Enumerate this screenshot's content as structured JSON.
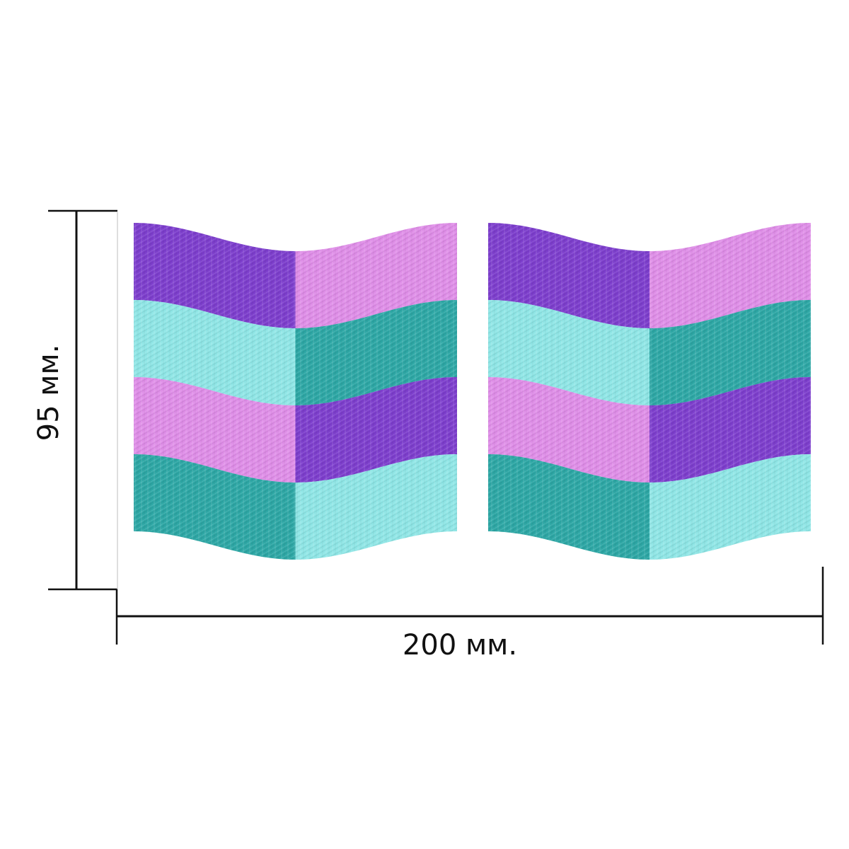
{
  "dimensions": {
    "height_label": "95 мм.",
    "width_label": "200 мм."
  },
  "colors": {
    "purple": "#7e3fce",
    "pink": "#df8ee8",
    "light_teal": "#8fe6e6",
    "dark_teal": "#2ea8a6",
    "line": "#111111"
  },
  "stickers": [
    {
      "name": "left",
      "columns": [
        [
          "purple",
          "light_teal",
          "pink",
          "dark_teal"
        ],
        [
          "pink",
          "dark_teal",
          "purple",
          "light_teal"
        ]
      ]
    },
    {
      "name": "right",
      "columns": [
        [
          "purple",
          "light_teal",
          "pink",
          "dark_teal"
        ],
        [
          "pink",
          "dark_teal",
          "purple",
          "light_teal"
        ]
      ]
    }
  ]
}
